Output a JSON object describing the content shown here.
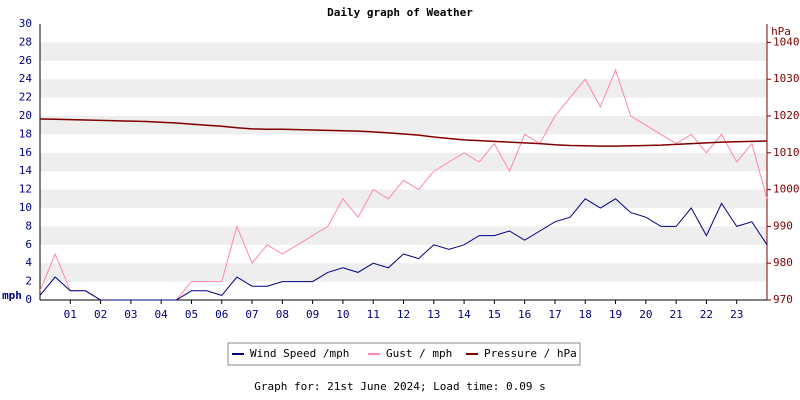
{
  "chart_data": {
    "type": "line",
    "title": "Daily graph of Weather",
    "y_label": "mph",
    "y2_label": "hPa",
    "footer": "Graph for: 21st June 2024; Load time: 0.09 s",
    "x": [
      0,
      0.5,
      1,
      1.5,
      2,
      2.5,
      3,
      3.5,
      4,
      4.5,
      5,
      5.5,
      6,
      6.5,
      7,
      7.5,
      8,
      8.5,
      9,
      9.5,
      10,
      10.5,
      11,
      11.5,
      12,
      12.5,
      13,
      13.5,
      14,
      14.5,
      15,
      15.5,
      16,
      16.5,
      17,
      17.5,
      18,
      18.5,
      19,
      19.5,
      20,
      20.5,
      21,
      21.5,
      22,
      22.5,
      23,
      23.5,
      24
    ],
    "xlim": [
      0,
      24
    ],
    "xticks": [
      {
        "value": 1,
        "label": "01"
      },
      {
        "value": 2,
        "label": "02"
      },
      {
        "value": 3,
        "label": "03"
      },
      {
        "value": 4,
        "label": "04"
      },
      {
        "value": 5,
        "label": "05"
      },
      {
        "value": 6,
        "label": "06"
      },
      {
        "value": 7,
        "label": "07"
      },
      {
        "value": 8,
        "label": "08"
      },
      {
        "value": 9,
        "label": "09"
      },
      10,
      11,
      12,
      13,
      14,
      15,
      16,
      17,
      18,
      19,
      20,
      21,
      22,
      23
    ],
    "ylim": [
      0,
      30
    ],
    "yticks": [
      0,
      2,
      4,
      6,
      8,
      10,
      12,
      14,
      16,
      18,
      20,
      22,
      24,
      26,
      28,
      30
    ],
    "y2lim": [
      970,
      1045
    ],
    "y2ticks": [
      970,
      980,
      990,
      1000,
      1010,
      1020,
      1030,
      1040
    ],
    "grid": true,
    "series": [
      {
        "name": "Wind Speed /mph",
        "color": "#000080",
        "values": [
          0.5,
          2.5,
          1,
          1,
          0,
          0,
          0,
          0,
          0,
          0,
          1,
          1,
          0.5,
          2.5,
          1.5,
          1.5,
          2,
          2,
          2,
          3,
          3.5,
          3,
          4,
          3.5,
          5,
          4.5,
          6,
          5.5,
          6,
          7,
          7,
          7.5,
          6.5,
          7.5,
          8.5,
          9,
          11,
          10,
          11,
          9.5,
          9,
          8,
          8,
          10,
          7,
          10.5,
          8,
          8.5,
          6
        ]
      },
      {
        "name": "Gust / mph",
        "color": "#ff88aa",
        "values": [
          1,
          5,
          1,
          1,
          0,
          0,
          0,
          0,
          0,
          0,
          2,
          2,
          2,
          8,
          4,
          6,
          5,
          6,
          7,
          8,
          11,
          9,
          12,
          11,
          13,
          12,
          14,
          15,
          16,
          15,
          17,
          14,
          18,
          17,
          20,
          22,
          24,
          21,
          25,
          20,
          19,
          18,
          17,
          18,
          16,
          18,
          15,
          17,
          11
        ]
      },
      {
        "name": "Pressure / hPa",
        "color": "#800000",
        "axis": "y2",
        "values": [
          1019.2,
          1019.1,
          1019,
          1018.9,
          1018.8,
          1018.7,
          1018.6,
          1018.5,
          1018.3,
          1018.1,
          1017.8,
          1017.5,
          1017.2,
          1016.8,
          1016.5,
          1016.4,
          1016.4,
          1016.3,
          1016.2,
          1016.1,
          1016,
          1015.9,
          1015.7,
          1015.4,
          1015.1,
          1014.8,
          1014.3,
          1013.9,
          1013.5,
          1013.3,
          1013.1,
          1012.9,
          1012.7,
          1012.5,
          1012.2,
          1012,
          1011.9,
          1011.8,
          1011.8,
          1011.9,
          1012,
          1012.1,
          1012.3,
          1012.5,
          1012.7,
          1012.9,
          1013,
          1013.1,
          1013.2
        ]
      }
    ]
  }
}
